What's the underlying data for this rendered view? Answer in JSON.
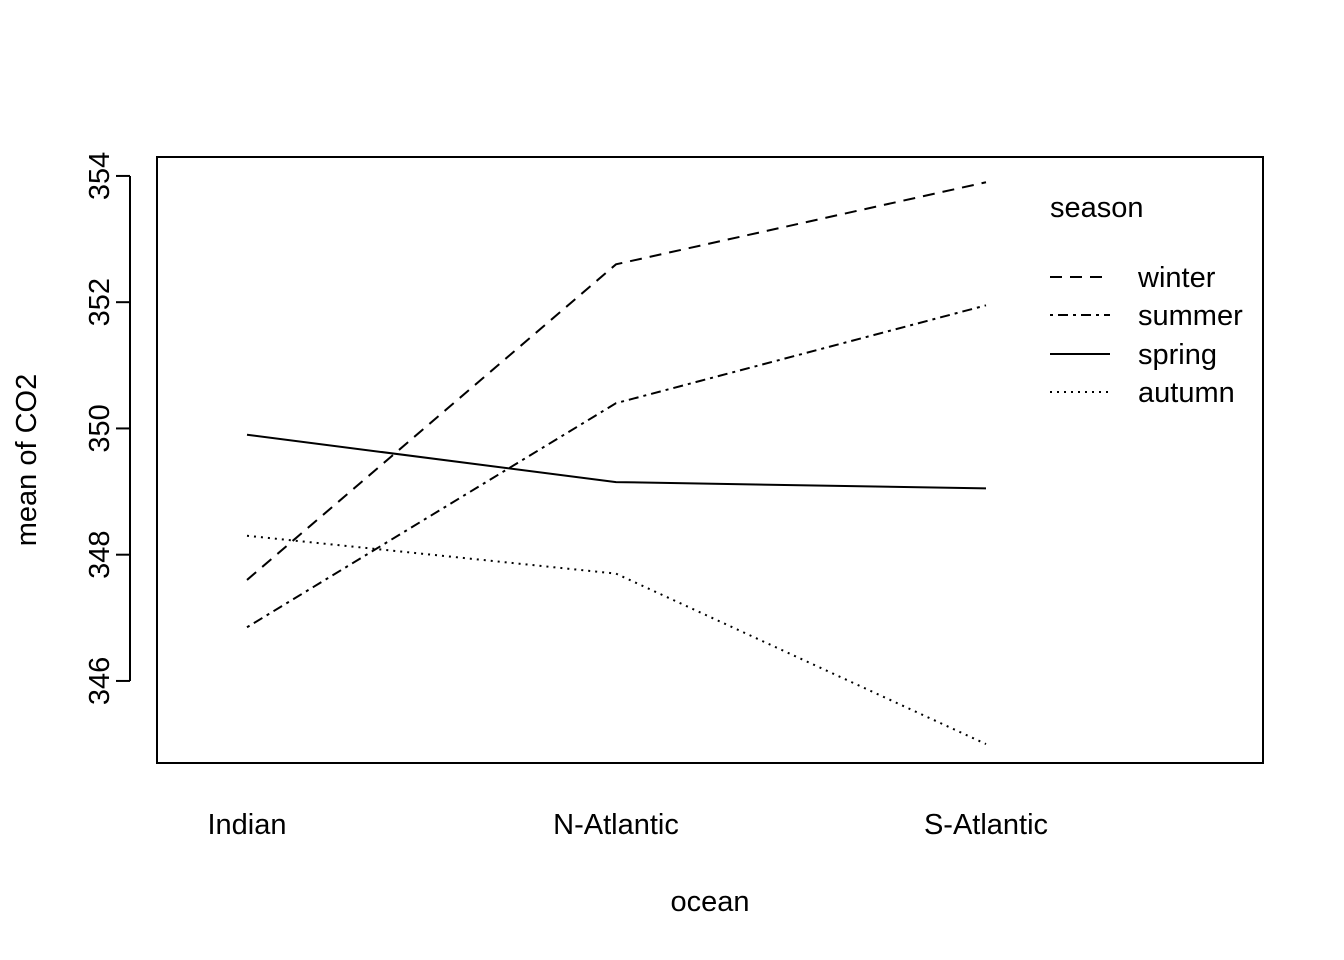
{
  "chart_data": {
    "type": "line",
    "title": "",
    "xlabel": "ocean",
    "ylabel": "mean of  CO2",
    "categories": [
      "Indian",
      "N-Atlantic",
      "S-Atlantic"
    ],
    "ylim": [
      344.7,
      354.3
    ],
    "yticks": [
      "346",
      "348",
      "350",
      "352",
      "354"
    ],
    "series": [
      {
        "name": "winter",
        "values": [
          347.6,
          352.6,
          353.9
        ],
        "linestyle": "dashed"
      },
      {
        "name": "summer",
        "values": [
          346.85,
          350.4,
          351.95
        ],
        "linestyle": "dotdash"
      },
      {
        "name": "spring",
        "values": [
          349.9,
          349.15,
          349.05
        ],
        "linestyle": "solid"
      },
      {
        "name": "autumn",
        "values": [
          348.3,
          347.7,
          345.0
        ],
        "linestyle": "dotted"
      }
    ],
    "legend": {
      "title": "season",
      "placement": "top-right"
    },
    "grid": false,
    "color": "#000000"
  }
}
